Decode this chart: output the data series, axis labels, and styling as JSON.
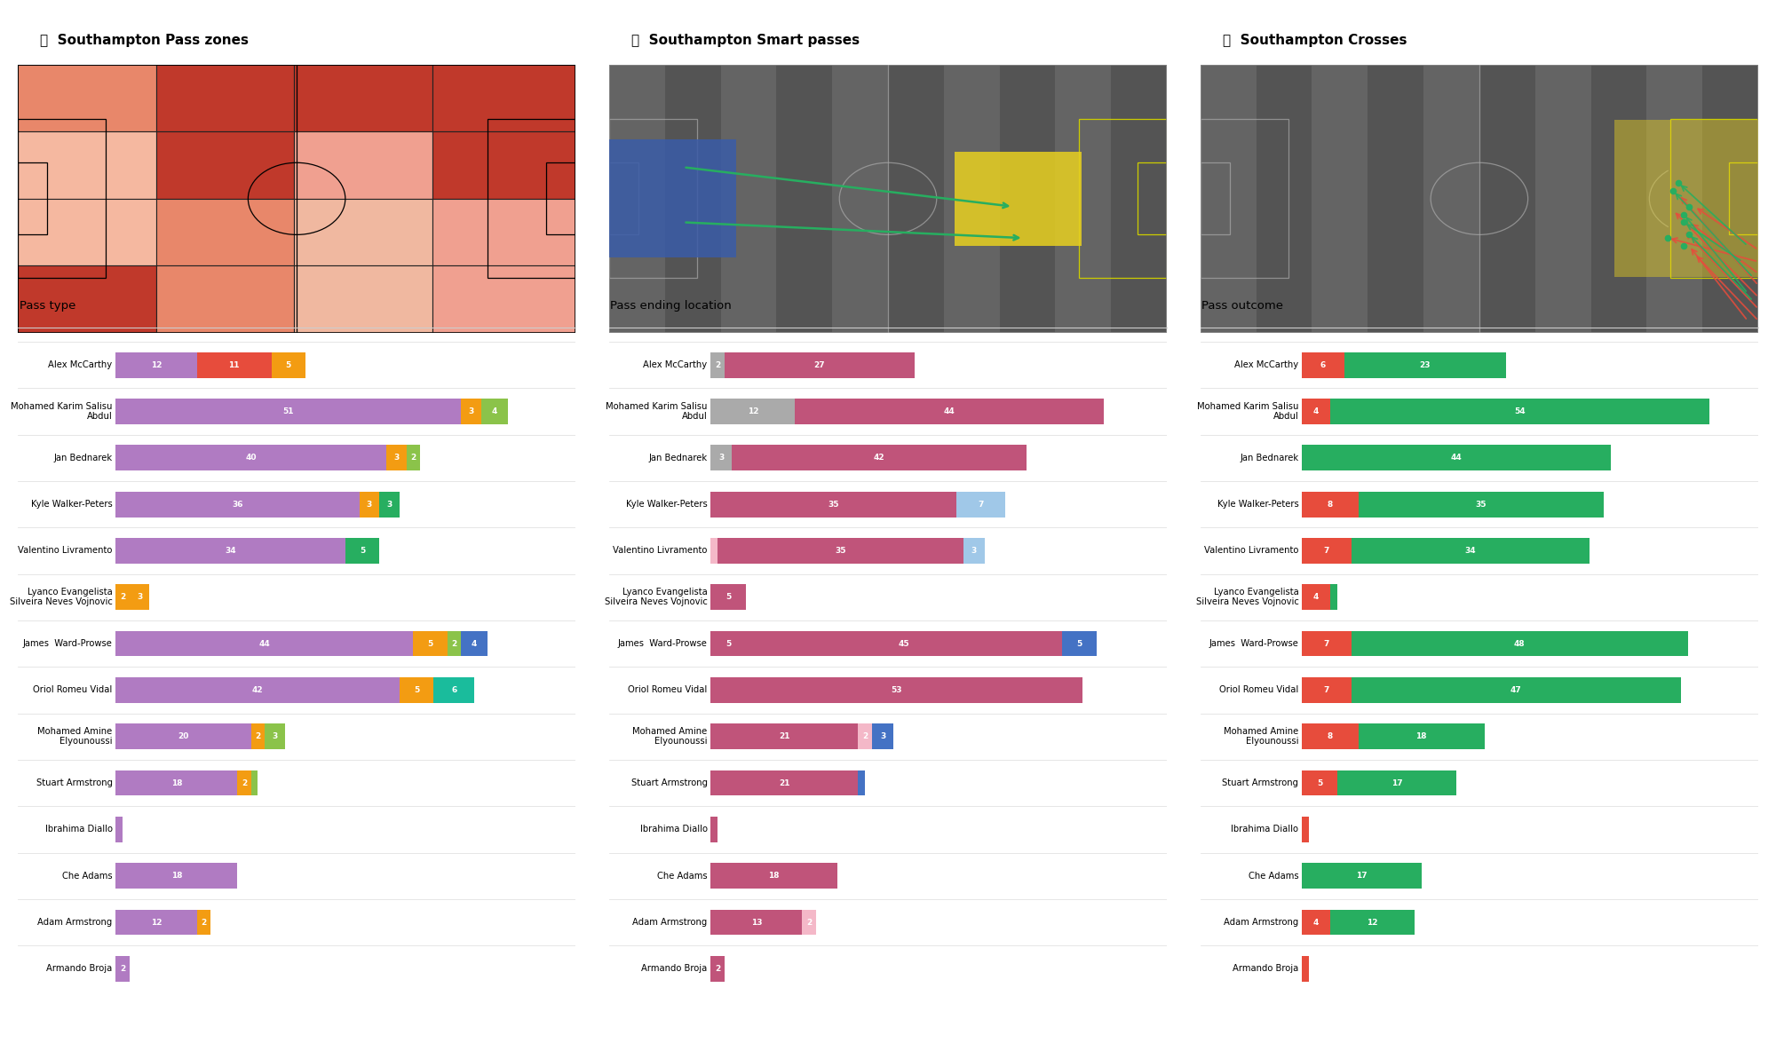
{
  "title1": "Southampton Pass zones",
  "title2": "Southampton Smart passes",
  "title3": "Southampton Crosses",
  "players": [
    "Alex McCarthy",
    "Mohamed Karim Salisu\nAbdul",
    "Jan Bednarek",
    "Kyle Walker-Peters",
    "Valentino Livramento",
    "Lyanco Evangelista\nSilveira Neves Vojnovic",
    "James  Ward-Prowse",
    "Oriol Romeu Vidal",
    "Mohamed Amine\nElyounoussi",
    "Stuart Armstrong",
    "Ibrahima Diallo",
    "Che Adams",
    "Adam Armstrong",
    "Armando Broja"
  ],
  "pass_type_segments": [
    [
      [
        12,
        "#b07bc2"
      ],
      [
        11,
        "#e74c3c"
      ],
      [
        5,
        "#f39c12"
      ],
      [
        0,
        "#27ae60"
      ]
    ],
    [
      [
        51,
        "#b07bc2"
      ],
      [
        3,
        "#f39c12"
      ],
      [
        4,
        "#8bc34a"
      ]
    ],
    [
      [
        40,
        "#b07bc2"
      ],
      [
        3,
        "#f39c12"
      ],
      [
        2,
        "#8bc34a"
      ]
    ],
    [
      [
        36,
        "#b07bc2"
      ],
      [
        0,
        "#4472c4"
      ],
      [
        3,
        "#f39c12"
      ],
      [
        3,
        "#27ae60"
      ]
    ],
    [
      [
        34,
        "#b07bc2"
      ],
      [
        0,
        "#f39c12"
      ],
      [
        5,
        "#27ae60"
      ]
    ],
    [
      [
        2,
        "#f39c12"
      ],
      [
        3,
        "#f39c12"
      ]
    ],
    [
      [
        44,
        "#b07bc2"
      ],
      [
        5,
        "#f39c12"
      ],
      [
        2,
        "#8bc34a"
      ],
      [
        4,
        "#4472c4"
      ]
    ],
    [
      [
        42,
        "#b07bc2"
      ],
      [
        5,
        "#f39c12"
      ],
      [
        6,
        "#1abc9c"
      ]
    ],
    [
      [
        20,
        "#b07bc2"
      ],
      [
        2,
        "#f39c12"
      ],
      [
        3,
        "#8bc34a"
      ]
    ],
    [
      [
        18,
        "#b07bc2"
      ],
      [
        2,
        "#f39c12"
      ],
      [
        1,
        "#8bc34a"
      ]
    ],
    [
      [
        1,
        "#b07bc2"
      ]
    ],
    [
      [
        18,
        "#b07bc2"
      ]
    ],
    [
      [
        12,
        "#b07bc2"
      ],
      [
        2,
        "#f39c12"
      ]
    ],
    [
      [
        2,
        "#b07bc2"
      ]
    ]
  ],
  "pass_end_segments": [
    [
      [
        2,
        "#aaaaaa"
      ],
      [
        27,
        "#c0547a"
      ]
    ],
    [
      [
        12,
        "#aaaaaa"
      ],
      [
        44,
        "#c0547a"
      ]
    ],
    [
      [
        3,
        "#aaaaaa"
      ],
      [
        42,
        "#c0547a"
      ]
    ],
    [
      [
        35,
        "#c0547a"
      ],
      [
        7,
        "#a0c8e8"
      ]
    ],
    [
      [
        1,
        "#f4b8c8"
      ],
      [
        35,
        "#c0547a"
      ],
      [
        3,
        "#a0c8e8"
      ]
    ],
    [
      [
        5,
        "#c0547a"
      ]
    ],
    [
      [
        5,
        "#c0547a"
      ],
      [
        45,
        "#c0547a"
      ],
      [
        5,
        "#4472c4"
      ]
    ],
    [
      [
        53,
        "#c0547a"
      ]
    ],
    [
      [
        21,
        "#c0547a"
      ],
      [
        2,
        "#f4b8c8"
      ],
      [
        3,
        "#4472c4"
      ]
    ],
    [
      [
        21,
        "#c0547a"
      ],
      [
        1,
        "#4472c4"
      ]
    ],
    [
      [
        1,
        "#c0547a"
      ]
    ],
    [
      [
        18,
        "#c0547a"
      ]
    ],
    [
      [
        13,
        "#c0547a"
      ],
      [
        2,
        "#f4b8c8"
      ]
    ],
    [
      [
        2,
        "#c0547a"
      ]
    ]
  ],
  "pass_outcome_segments": [
    [
      [
        6,
        "#e74c3c"
      ],
      [
        23,
        "#27ae60"
      ]
    ],
    [
      [
        4,
        "#e74c3c"
      ],
      [
        54,
        "#27ae60"
      ]
    ],
    [
      [
        44,
        "#27ae60"
      ]
    ],
    [
      [
        8,
        "#e74c3c"
      ],
      [
        35,
        "#27ae60"
      ]
    ],
    [
      [
        7,
        "#e74c3c"
      ],
      [
        34,
        "#27ae60"
      ]
    ],
    [
      [
        4,
        "#e74c3c"
      ],
      [
        1,
        "#27ae60"
      ]
    ],
    [
      [
        7,
        "#e74c3c"
      ],
      [
        48,
        "#27ae60"
      ]
    ],
    [
      [
        7,
        "#e74c3c"
      ],
      [
        47,
        "#27ae60"
      ]
    ],
    [
      [
        8,
        "#e74c3c"
      ],
      [
        18,
        "#27ae60"
      ]
    ],
    [
      [
        5,
        "#e74c3c"
      ],
      [
        17,
        "#27ae60"
      ]
    ],
    [
      [
        1,
        "#e74c3c"
      ]
    ],
    [
      [
        17,
        "#27ae60"
      ]
    ],
    [
      [
        4,
        "#e74c3c"
      ],
      [
        12,
        "#27ae60"
      ]
    ],
    [
      [
        1,
        "#e74c3c"
      ]
    ]
  ],
  "heatmap_grid": [
    [
      "#e8876a",
      "#c0392b",
      "#c0392b",
      "#c0392b"
    ],
    [
      "#f5b8a0",
      "#c0392b",
      "#f0a090",
      "#c0392b"
    ],
    [
      "#f5b8a0",
      "#e8876a",
      "#f0b8a0",
      "#f0a090"
    ],
    [
      "#c0392b",
      "#e8876a",
      "#f0b8a0",
      "#f0a090"
    ]
  ],
  "bg_color": "#ffffff",
  "bar_height": 0.55,
  "smart_pass_color": "#4472c4",
  "simple_pass_color": "#b07bc2",
  "launch_color": "#e74c3c",
  "high_pass_color": "#f39c12",
  "head_pass_color": "#8bc34a",
  "hand_pass_color": "#f39c12",
  "cross_color": "#27ae60",
  "own18_color": "#aaaaaa",
  "own6_color": "#f4b8c8",
  "outside_color": "#c0547a",
  "opp18_color": "#c0547a",
  "opp6_color": "#4472c4",
  "unsuccessful_color": "#e74c3c",
  "successful_color": "#27ae60"
}
